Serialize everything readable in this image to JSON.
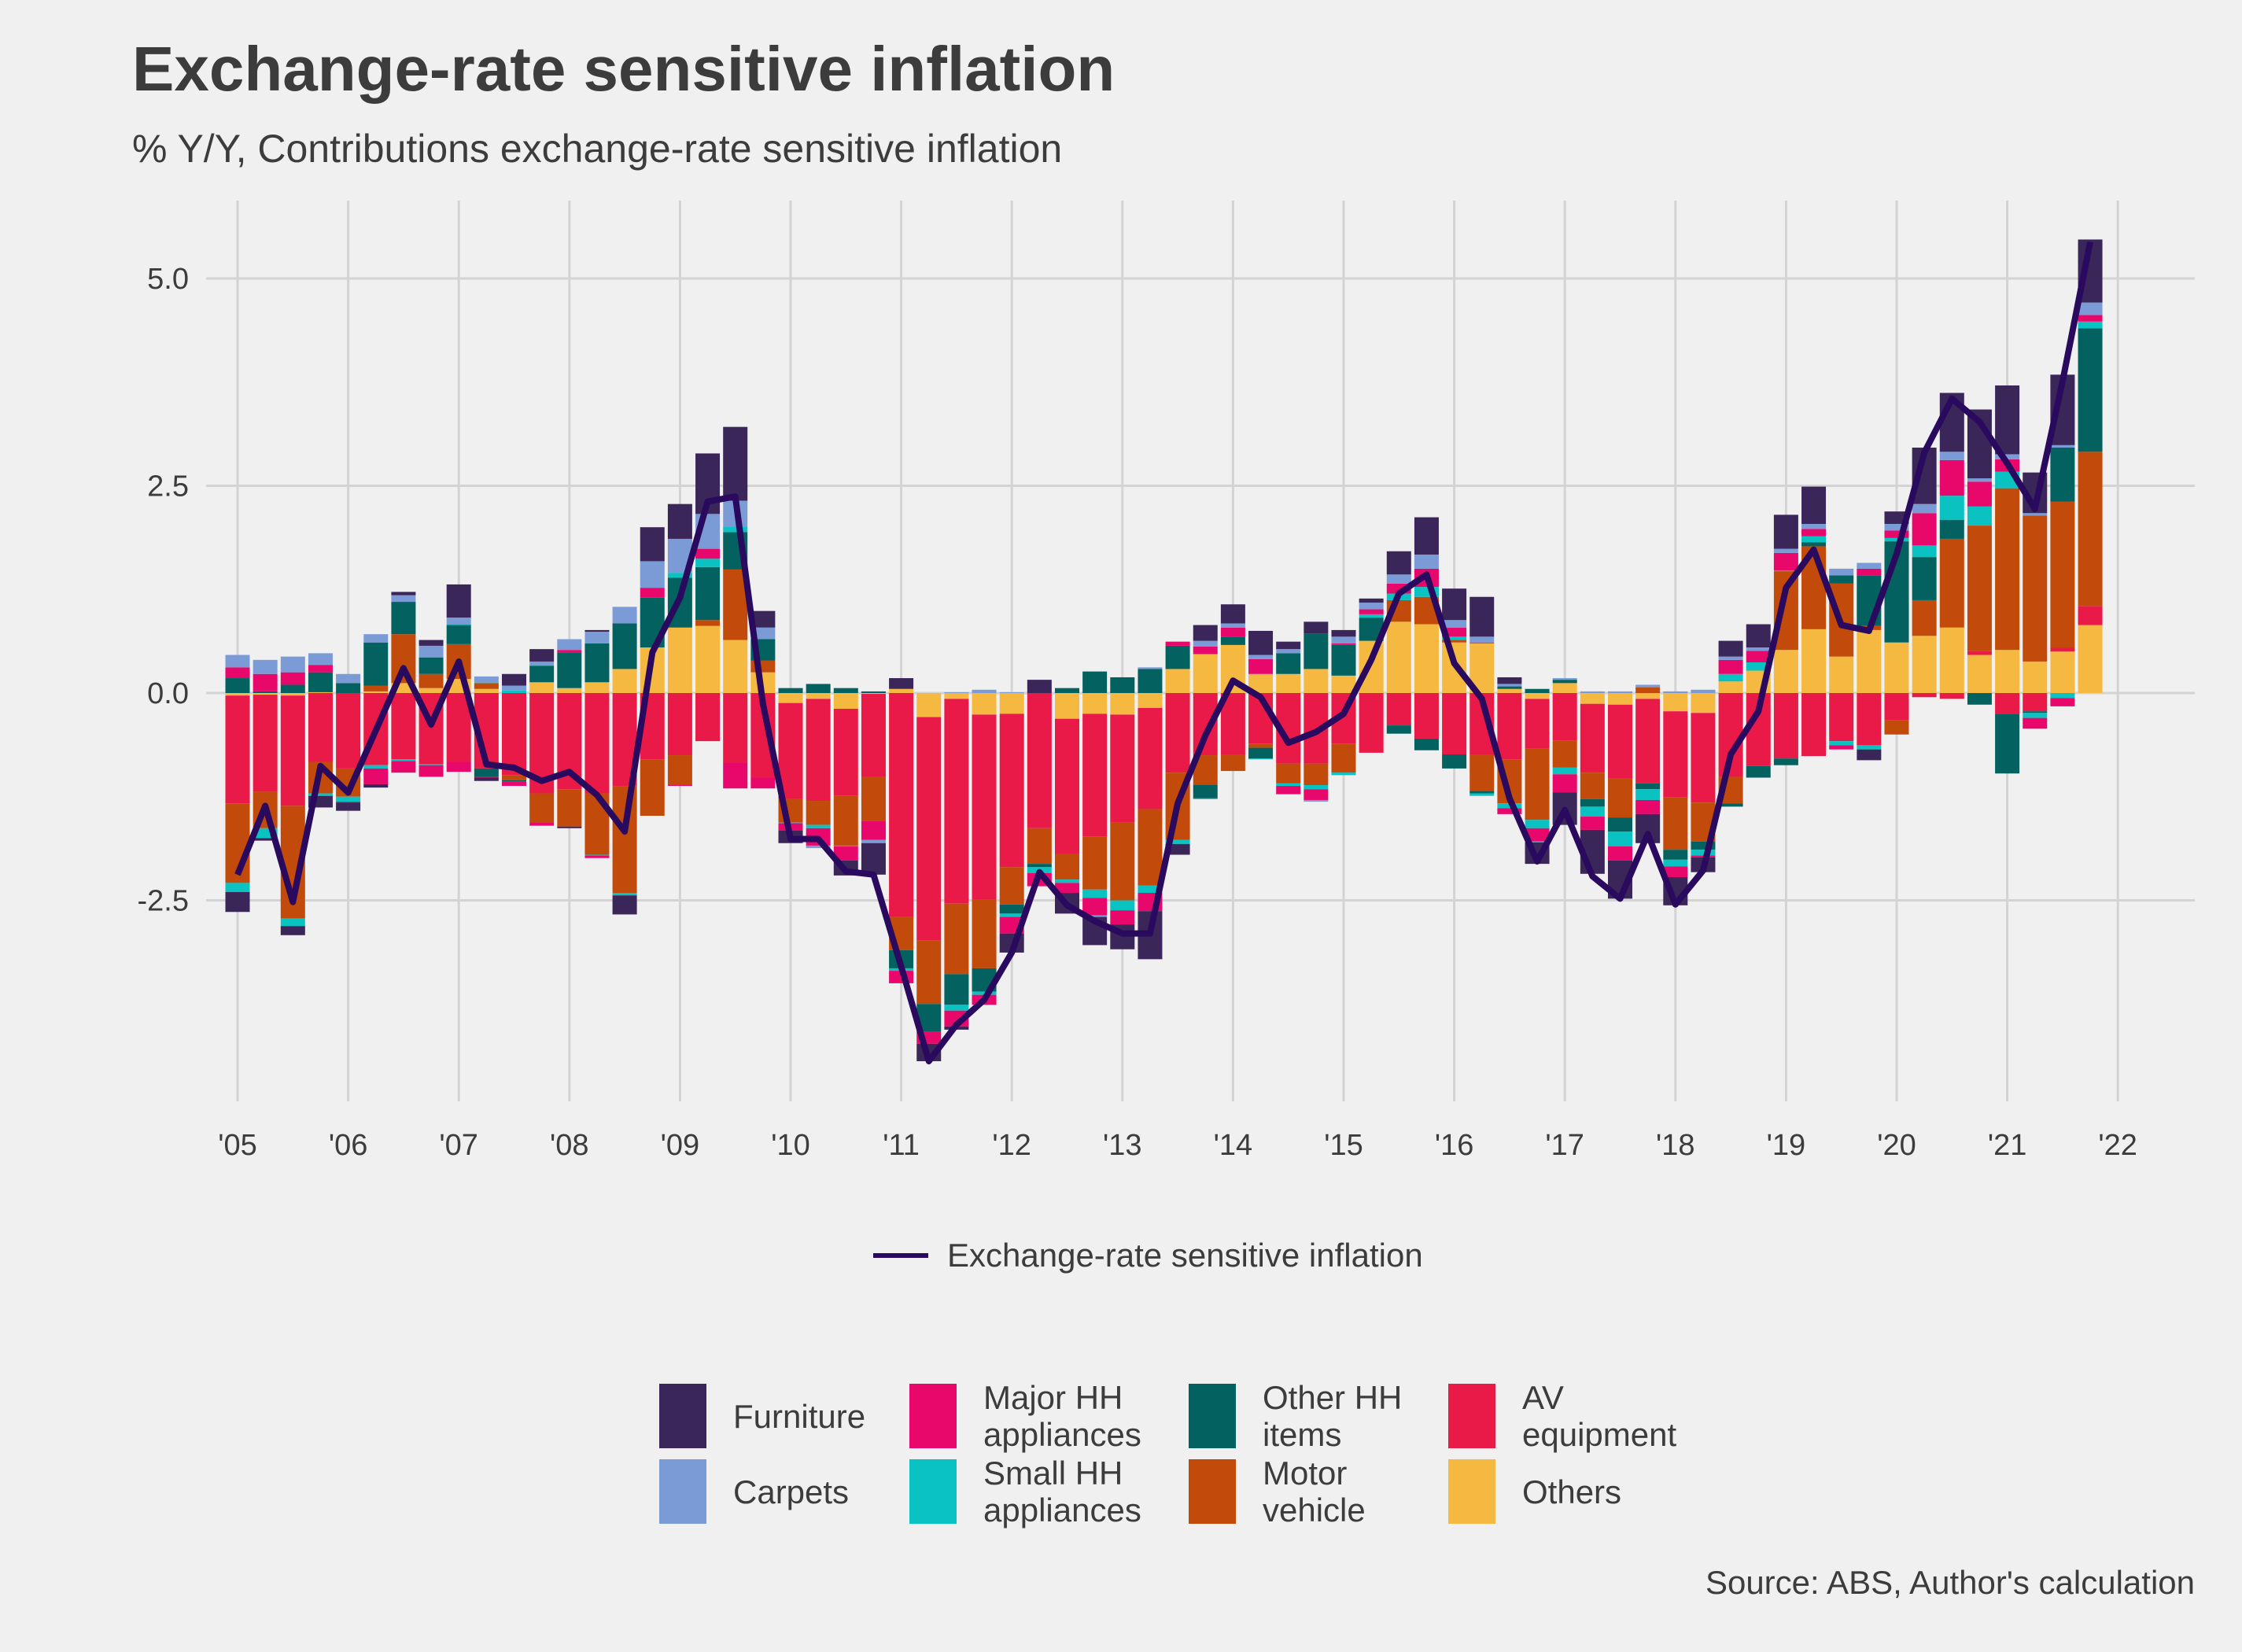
{
  "header": {
    "title": "Exchange-rate sensitive inflation",
    "subtitle": "% Y/Y, Contributions exchange-rate sensitive inflation"
  },
  "source": "Source: ABS, Author's calculation",
  "chart_data": {
    "type": "bar",
    "stacked": true,
    "title": "Exchange-rate sensitive inflation",
    "subtitle": "% Y/Y, Contributions exchange-rate sensitive inflation",
    "xlabel": "",
    "ylabel": "",
    "ylim": [
      -4.7,
      5.6
    ],
    "grid": true,
    "legend_placement": "bottom",
    "y_ticks": [
      "-2.5",
      "0.0",
      "2.5",
      "5.0"
    ],
    "y_tick_values": [
      -2.5,
      0,
      2.5,
      5
    ],
    "x_ticks": [
      "'05",
      "'06",
      "'07",
      "'08",
      "'09",
      "'10",
      "'11",
      "'12",
      "'13",
      "'14",
      "'15",
      "'16",
      "'17",
      "'18",
      "'19",
      "'20",
      "'21",
      "'22"
    ],
    "categories": [
      "2005 Q1",
      "2005 Q2",
      "2005 Q3",
      "2005 Q4",
      "2006 Q1",
      "2006 Q2",
      "2006 Q3",
      "2006 Q4",
      "2007 Q1",
      "2007 Q2",
      "2007 Q3",
      "2007 Q4",
      "2008 Q1",
      "2008 Q2",
      "2008 Q3",
      "2008 Q4",
      "2009 Q1",
      "2009 Q2",
      "2009 Q3",
      "2009 Q4",
      "2010 Q1",
      "2010 Q2",
      "2010 Q3",
      "2010 Q4",
      "2011 Q1",
      "2011 Q2",
      "2011 Q3",
      "2011 Q4",
      "2012 Q1",
      "2012 Q2",
      "2012 Q3",
      "2012 Q4",
      "2013 Q1",
      "2013 Q2",
      "2013 Q3",
      "2013 Q4",
      "2014 Q1",
      "2014 Q2",
      "2014 Q3",
      "2014 Q4",
      "2015 Q1",
      "2015 Q2",
      "2015 Q3",
      "2015 Q4",
      "2016 Q1",
      "2016 Q2",
      "2016 Q3",
      "2016 Q4",
      "2017 Q1",
      "2017 Q2",
      "2017 Q3",
      "2017 Q4",
      "2018 Q1",
      "2018 Q2",
      "2018 Q3",
      "2018 Q4",
      "2019 Q1",
      "2019 Q2",
      "2019 Q3",
      "2019 Q4",
      "2020 Q1",
      "2020 Q2",
      "2020 Q3",
      "2020 Q4",
      "2021 Q1",
      "2021 Q2",
      "2021 Q3",
      "2021 Q4"
    ],
    "series": [
      {
        "name": "Others",
        "color": "#f5b942",
        "values": [
          -0.03,
          -0.02,
          -0.03,
          0.01,
          0,
          0.02,
          0.12,
          0.06,
          0.17,
          0.05,
          0,
          0.13,
          0.06,
          0.13,
          0.29,
          0.55,
          0.79,
          0.81,
          0.64,
          0.25,
          -0.12,
          -0.07,
          -0.19,
          -0.01,
          0.05,
          -0.29,
          -0.07,
          -0.26,
          -0.25,
          0,
          -0.31,
          -0.25,
          -0.26,
          -0.18,
          0.29,
          0.47,
          0.58,
          0.23,
          0.23,
          0.29,
          0.21,
          0.63,
          0.86,
          0.83,
          0.61,
          0.6,
          0.05,
          -0.07,
          0.12,
          -0.13,
          -0.14,
          -0.07,
          -0.22,
          -0.24,
          0.14,
          0.27,
          0.52,
          0.77,
          0.44,
          0.76,
          0.61,
          0.69,
          0.79,
          0.46,
          0.52,
          0.38,
          0.5,
          0.82
        ]
      },
      {
        "name": "AV equipment",
        "color": "#e91a47",
        "values": [
          -1.3,
          -1.17,
          -1.33,
          -0.83,
          -0.91,
          -0.87,
          -0.8,
          -0.86,
          -0.83,
          -0.91,
          -0.99,
          -1.21,
          -1.16,
          -1.21,
          -1.12,
          -0.8,
          -0.75,
          -0.58,
          -0.84,
          -1.02,
          -1.16,
          -1.23,
          -1.05,
          -1.0,
          -2.7,
          -2.69,
          -2.47,
          -2.23,
          -1.85,
          -1.63,
          -1.63,
          -1.48,
          -1.3,
          -1.22,
          -0.96,
          -0.75,
          -0.74,
          -0.61,
          -0.85,
          -0.85,
          -0.61,
          -0.72,
          -0.39,
          -0.55,
          -0.74,
          -0.74,
          -0.8,
          -0.6,
          -0.57,
          -0.83,
          -0.89,
          -1.02,
          -1.04,
          -1.08,
          -1.01,
          -0.88,
          -0.79,
          -0.76,
          -0.58,
          -0.63,
          -0.33,
          -0.05,
          -0.07,
          0.05,
          -0.25,
          -0.22,
          0.05,
          0.23
        ]
      },
      {
        "name": "Motor vehicle",
        "color": "#c24a0a",
        "values": [
          -0.96,
          -0.44,
          -1.36,
          -0.38,
          -0.34,
          0.07,
          0.59,
          0.17,
          0.42,
          0.07,
          -0.06,
          -0.35,
          -0.45,
          -0.74,
          -1.29,
          -0.68,
          -0.36,
          0.07,
          0.85,
          0.14,
          -0.28,
          -0.29,
          -0.6,
          -0.53,
          -0.4,
          -0.77,
          -0.85,
          -0.83,
          -0.45,
          -0.43,
          -0.31,
          -0.64,
          -0.94,
          -0.92,
          -0.81,
          -0.36,
          -0.2,
          -0.05,
          -0.24,
          -0.26,
          -0.35,
          0,
          0.26,
          0.33,
          0.03,
          -0.44,
          -0.53,
          -0.86,
          -0.33,
          -0.32,
          -0.47,
          0.07,
          -0.63,
          -0.47,
          -0.32,
          0,
          0.95,
          1.0,
          0.88,
          0.05,
          -0.17,
          0.43,
          1.07,
          1.51,
          1.95,
          1.76,
          1.76,
          1.86
        ]
      },
      {
        "name": "Other HH items",
        "color": "#03625f",
        "values": [
          0.18,
          0.02,
          0.1,
          0.24,
          0.12,
          0.52,
          0.39,
          0.2,
          0.23,
          -0.1,
          -0.02,
          0.2,
          0.43,
          0.47,
          0.55,
          0.6,
          0.6,
          0.64,
          0.45,
          0.26,
          0.06,
          0.11,
          0.06,
          0.02,
          -0.22,
          -0.33,
          -0.37,
          -0.28,
          -0.11,
          -0.04,
          0.06,
          0.26,
          0.19,
          0.29,
          0.28,
          -0.16,
          0.1,
          -0.13,
          0.25,
          0.43,
          0.37,
          0.28,
          -0.1,
          -0.14,
          -0.17,
          -0.03,
          0.03,
          0.05,
          0.04,
          -0.09,
          -0.17,
          -0.07,
          -0.12,
          -0.1,
          -0.04,
          -0.14,
          -0.08,
          0.05,
          0.1,
          0.61,
          1.22,
          0.52,
          0.23,
          -0.14,
          -0.72,
          -0.02,
          0.65,
          1.49
        ]
      },
      {
        "name": "Small HH appliances",
        "color": "#0bc2c2",
        "values": [
          -0.11,
          -0.12,
          -0.09,
          -0.03,
          -0.06,
          -0.04,
          -0.02,
          -0.01,
          0.01,
          0.01,
          0.03,
          0.01,
          0,
          -0.01,
          -0.03,
          0,
          0.06,
          0.1,
          0.07,
          0,
          -0.01,
          -0.04,
          -0.01,
          0,
          -0.03,
          0,
          -0.07,
          -0.04,
          -0.04,
          -0.07,
          -0.04,
          -0.1,
          -0.12,
          -0.09,
          -0.05,
          -0.01,
          0,
          -0.01,
          -0.03,
          -0.05,
          -0.03,
          0.04,
          0.08,
          0.12,
          0.04,
          -0.03,
          -0.06,
          -0.1,
          -0.08,
          -0.12,
          -0.18,
          -0.13,
          -0.08,
          -0.07,
          0.09,
          0.1,
          0.01,
          0.07,
          -0.05,
          -0.05,
          0.04,
          0.14,
          0.29,
          0.23,
          0.2,
          -0.06,
          -0.06,
          0.08
        ]
      },
      {
        "name": "Major HH appliances",
        "color": "#e8076a",
        "values": [
          0.13,
          0.21,
          0.15,
          0.09,
          -0.01,
          -0.19,
          -0.14,
          -0.14,
          -0.12,
          -0.01,
          -0.05,
          -0.04,
          0.03,
          -0.03,
          0,
          0.12,
          -0.01,
          0.12,
          -0.31,
          -0.13,
          -0.09,
          -0.21,
          -0.17,
          -0.23,
          -0.15,
          -0.15,
          -0.19,
          -0.12,
          -0.2,
          -0.16,
          -0.12,
          -0.21,
          -0.17,
          -0.22,
          0.05,
          0.09,
          0.11,
          0.18,
          -0.1,
          -0.13,
          0.02,
          0.06,
          0.12,
          0.22,
          0.11,
          0.01,
          -0.07,
          -0.16,
          -0.22,
          -0.16,
          -0.17,
          -0.17,
          -0.13,
          -0.02,
          0.17,
          0.14,
          0.21,
          0.09,
          -0.05,
          0.08,
          0.09,
          0.39,
          0.43,
          0.3,
          0.15,
          -0.13,
          -0.1,
          0.08
        ]
      },
      {
        "name": "Carpets",
        "color": "#7b9bd6",
        "values": [
          0.15,
          0.17,
          0.19,
          0.14,
          0.11,
          0.1,
          0.08,
          0.14,
          0.08,
          0.07,
          0.06,
          0.04,
          0.13,
          0.14,
          0.2,
          0.32,
          0.41,
          0.42,
          0.31,
          0.14,
          0,
          -0.03,
          0,
          -0.04,
          0,
          0,
          0.01,
          0.04,
          0.01,
          0,
          0,
          -0.02,
          0,
          0.02,
          0,
          0.07,
          0.05,
          0.05,
          0.05,
          -0.02,
          0.08,
          0.08,
          0.11,
          0.17,
          0.09,
          0.07,
          0.03,
          -0.01,
          0.02,
          0.02,
          0.02,
          0.03,
          0.02,
          0.04,
          0.04,
          0.04,
          0.05,
          0.06,
          0.08,
          0.07,
          0.08,
          0.11,
          0.1,
          0.04,
          0.06,
          0.03,
          0.03,
          0.15
        ]
      },
      {
        "name": "Furniture",
        "color": "#3b2659",
        "values": [
          -0.24,
          -0.03,
          -0.11,
          -0.14,
          -0.1,
          -0.04,
          0.04,
          0.07,
          0.4,
          -0.04,
          0.14,
          0.15,
          -0.02,
          0.02,
          -0.23,
          0.41,
          0.42,
          0.73,
          0.89,
          0.2,
          -0.15,
          0,
          -0.18,
          -0.38,
          0.13,
          -0.21,
          -0.04,
          0,
          -0.23,
          0.16,
          -0.25,
          -0.34,
          -0.3,
          -0.58,
          -0.13,
          0.19,
          0.23,
          0.29,
          0.09,
          0.14,
          0.08,
          0.05,
          0.28,
          0.45,
          0.38,
          0.48,
          0.08,
          -0.26,
          -0.39,
          -0.53,
          -0.46,
          -0.35,
          -0.34,
          -0.18,
          0.19,
          0.28,
          0.41,
          0.45,
          0,
          -0.13,
          0.15,
          0.68,
          0.71,
          0.83,
          0.83,
          0.49,
          0.85,
          0.76
        ]
      }
    ],
    "line": {
      "name": "Exchange-rate sensitive inflation",
      "color": "#2a0a5e",
      "values": [
        -2.19,
        -1.36,
        -2.52,
        -0.88,
        -1.2,
        -0.45,
        0.3,
        -0.38,
        0.38,
        -0.86,
        -0.9,
        -1.06,
        -0.95,
        -1.23,
        -1.67,
        0.49,
        1.15,
        2.31,
        2.37,
        -0.13,
        -1.76,
        -1.76,
        -2.15,
        -2.19,
        -3.3,
        -4.44,
        -4.0,
        -3.7,
        -3.13,
        -2.16,
        -2.56,
        -2.75,
        -2.9,
        -2.9,
        -1.33,
        -0.51,
        0.15,
        -0.05,
        -0.6,
        -0.47,
        -0.25,
        0.4,
        1.2,
        1.43,
        0.36,
        -0.07,
        -1.27,
        -2.03,
        -1.41,
        -2.21,
        -2.48,
        -1.7,
        -2.55,
        -2.14,
        -0.74,
        -0.22,
        1.27,
        1.73,
        0.82,
        0.75,
        1.68,
        2.9,
        3.55,
        3.27,
        2.77,
        2.22,
        3.76,
        5.44
      ]
    }
  },
  "legend": {
    "line_label": "Exchange-rate sensitive inflation",
    "items": [
      {
        "label": "Furniture",
        "color": "#3b2659"
      },
      {
        "label": "Carpets",
        "color": "#7b9bd6"
      },
      {
        "label": "Major HH appliances",
        "color": "#e8076a"
      },
      {
        "label": "Small HH appliances",
        "color": "#0bc2c2"
      },
      {
        "label": "Other HH items",
        "color": "#03625f"
      },
      {
        "label": "Motor vehicle",
        "color": "#c24a0a"
      },
      {
        "label": "AV equipment",
        "color": "#e91a47"
      },
      {
        "label": "Others",
        "color": "#f5b942"
      }
    ]
  }
}
